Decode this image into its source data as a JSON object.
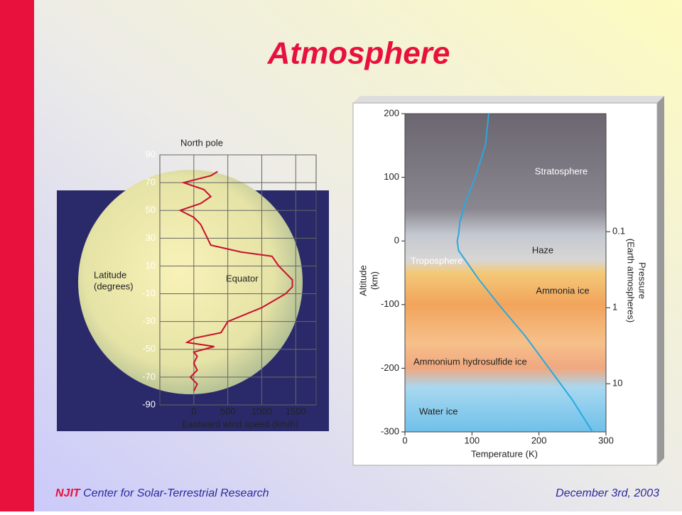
{
  "title": "Atmosphere",
  "footer": {
    "org": "NJIT",
    "center": "Center for Solar-Terrestrial Research",
    "date": "December 3rd, 2003"
  },
  "chart_data": [
    {
      "type": "line",
      "title": "North pole",
      "xlabel": "Eastward wind speed (km/h)",
      "ylabel": [
        "Latitude",
        "(degrees)"
      ],
      "annotation": "Equator",
      "color": "#c8102e",
      "x": [
        350,
        250,
        -150,
        150,
        250,
        100,
        -200,
        0,
        100,
        200,
        250,
        700,
        1150,
        1250,
        1350,
        1450,
        1450,
        1350,
        1000,
        500,
        400,
        0,
        -100,
        300,
        0,
        50,
        0,
        50,
        -50,
        50,
        0
      ],
      "values": [
        78,
        75,
        70,
        65,
        60,
        55,
        50,
        45,
        40,
        30,
        25,
        20,
        17,
        10,
        5,
        0,
        -5,
        -10,
        -20,
        -30,
        -38,
        -42,
        -45,
        -48,
        -52,
        -55,
        -60,
        -65,
        -70,
        -75,
        -80
      ],
      "xlim": [
        -500,
        1800
      ],
      "xticks": [
        0,
        500,
        1000,
        1500
      ],
      "ylim": [
        -90,
        90
      ],
      "yticks": [
        90,
        70,
        50,
        30,
        10,
        -10,
        -30,
        -50,
        -70,
        -90
      ],
      "grid": true
    },
    {
      "type": "line",
      "xlabel": "Temperature (K)",
      "ylabel": [
        "Altitude",
        "(km)"
      ],
      "y2label": [
        "Pressure",
        "(Earth atmospheres)"
      ],
      "annotations": [
        "Stratosphere",
        "Haze",
        "Troposphere",
        "Ammonia ice",
        "Ammonium hydrosulfide ice",
        "Water ice"
      ],
      "color": "#29a9e0",
      "x": [
        125,
        120,
        105,
        90,
        82,
        80,
        78,
        80,
        90,
        110,
        140,
        180,
        215,
        250,
        280
      ],
      "values": [
        200,
        150,
        100,
        60,
        30,
        10,
        0,
        -15,
        -30,
        -60,
        -100,
        -150,
        -200,
        -250,
        -300
      ],
      "xlim": [
        0,
        300
      ],
      "xticks": [
        0,
        100,
        200,
        300
      ],
      "ylim": [
        -300,
        200
      ],
      "yticks": [
        200,
        100,
        0,
        -100,
        -200,
        -300
      ],
      "y2lim": [
        43,
        0.0028
      ],
      "y2ticks": [
        0.1,
        1,
        10
      ],
      "y2log": true
    }
  ]
}
